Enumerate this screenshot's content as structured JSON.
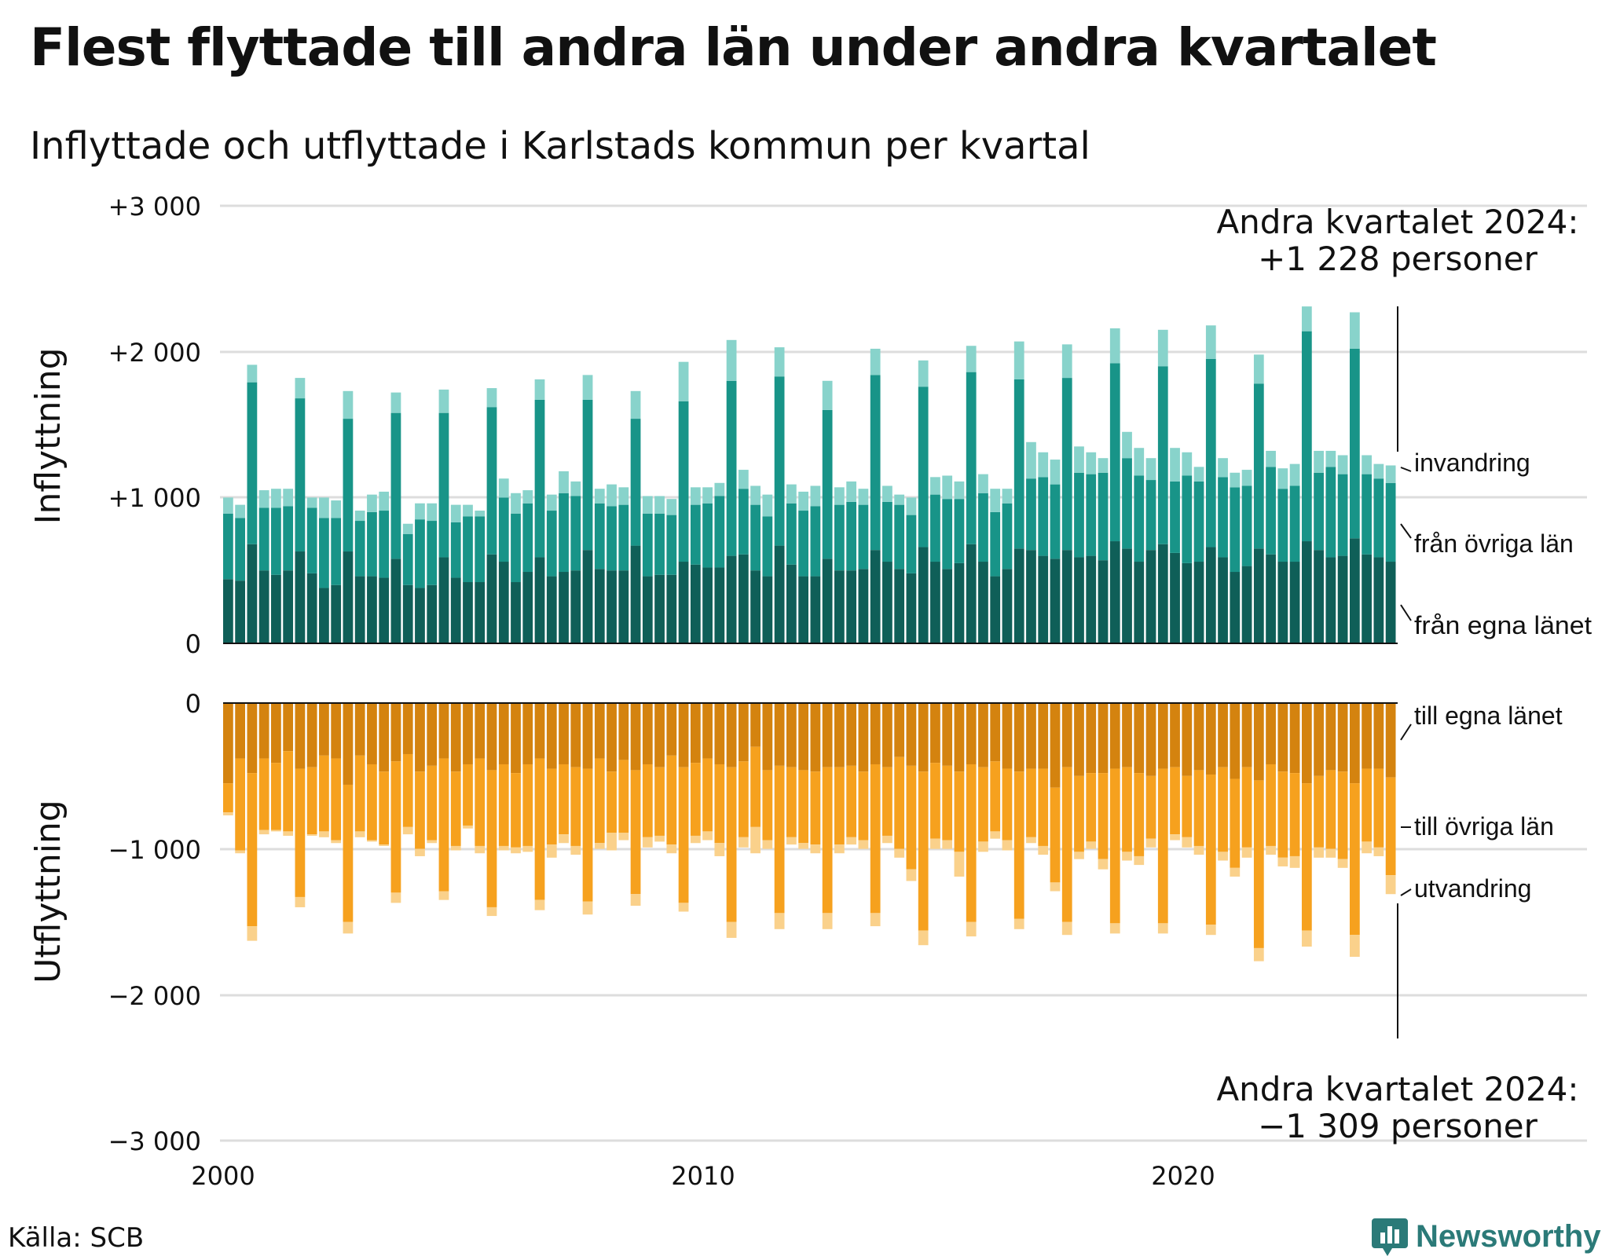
{
  "title": "Flest flyttade till andra län under andra kvartalet",
  "subtitle": "Inflyttade och utflyttade i Karlstads kommun per kvartal",
  "source": "Källa: SCB",
  "brand": "Newsworthy",
  "colors": {
    "in_own": "#0f5f58",
    "in_other": "#189488",
    "in_immig": "#88d3cb",
    "out_own": "#d4830f",
    "out_other": "#f6a11e",
    "out_emig": "#fad18b",
    "grid": "#dddddd",
    "brand": "#2b7a78"
  },
  "chart_data": {
    "type": "bar",
    "stacked": true,
    "diverging": true,
    "y_ticks": [
      "+3 000",
      "+2 000",
      "+1 000",
      "0",
      "0",
      "−1 000",
      "−2 000",
      "−3 000"
    ],
    "ylim_in": [
      0,
      3000
    ],
    "ylim_out": [
      -3000,
      0
    ],
    "x_ticks": [
      "2000",
      "2010",
      "2020"
    ],
    "ylabel_in": "Inflyttning",
    "ylabel_out": "Utflyttning",
    "grid": true,
    "annotation_top": {
      "line1": "Andra kvartalet 2024:",
      "line2": "+1 228 personer"
    },
    "annotation_bottom": {
      "line1": "Andra kvartalet 2024:",
      "line2": "−1 309 personer"
    },
    "series_labels": {
      "in_immig": "invandring",
      "in_other": "från övriga län",
      "in_own": "från egna länet",
      "out_own": "till egna länet",
      "out_other": "till övriga län",
      "out_emig": "utvandring"
    },
    "periods": [
      "2000 Q1",
      "2000 Q2",
      "2000 Q3",
      "2000 Q4",
      "2001 Q1",
      "2001 Q2",
      "2001 Q3",
      "2001 Q4",
      "2002 Q1",
      "2002 Q2",
      "2002 Q3",
      "2002 Q4",
      "2003 Q1",
      "2003 Q2",
      "2003 Q3",
      "2003 Q4",
      "2004 Q1",
      "2004 Q2",
      "2004 Q3",
      "2004 Q4",
      "2005 Q1",
      "2005 Q2",
      "2005 Q3",
      "2005 Q4",
      "2006 Q1",
      "2006 Q2",
      "2006 Q3",
      "2006 Q4",
      "2007 Q1",
      "2007 Q2",
      "2007 Q3",
      "2007 Q4",
      "2008 Q1",
      "2008 Q2",
      "2008 Q3",
      "2008 Q4",
      "2009 Q1",
      "2009 Q2",
      "2009 Q3",
      "2009 Q4",
      "2010 Q1",
      "2010 Q2",
      "2010 Q3",
      "2010 Q4",
      "2011 Q1",
      "2011 Q2",
      "2011 Q3",
      "2011 Q4",
      "2012 Q1",
      "2012 Q2",
      "2012 Q3",
      "2012 Q4",
      "2013 Q1",
      "2013 Q2",
      "2013 Q3",
      "2013 Q4",
      "2014 Q1",
      "2014 Q2",
      "2014 Q3",
      "2014 Q4",
      "2015 Q1",
      "2015 Q2",
      "2015 Q3",
      "2015 Q4",
      "2016 Q1",
      "2016 Q2",
      "2016 Q3",
      "2016 Q4",
      "2017 Q1",
      "2017 Q2",
      "2017 Q3",
      "2017 Q4",
      "2018 Q1",
      "2018 Q2",
      "2018 Q3",
      "2018 Q4",
      "2019 Q1",
      "2019 Q2",
      "2019 Q3",
      "2019 Q4",
      "2020 Q1",
      "2020 Q2",
      "2020 Q3",
      "2020 Q4",
      "2021 Q1",
      "2021 Q2",
      "2021 Q3",
      "2021 Q4",
      "2022 Q1",
      "2022 Q2",
      "2022 Q3",
      "2022 Q4",
      "2023 Q1",
      "2023 Q2",
      "2023 Q3",
      "2023 Q4",
      "2024 Q1",
      "2024 Q2"
    ],
    "series": [
      {
        "key": "in_own",
        "values": [
          440,
          430,
          680,
          500,
          470,
          500,
          630,
          480,
          380,
          400,
          630,
          460,
          460,
          450,
          580,
          400,
          380,
          400,
          590,
          450,
          420,
          420,
          610,
          560,
          420,
          490,
          590,
          460,
          490,
          500,
          640,
          510,
          500,
          500,
          670,
          460,
          470,
          470,
          560,
          540,
          520,
          520,
          600,
          610,
          500,
          460,
          670,
          540,
          460,
          460,
          580,
          500,
          500,
          510,
          640,
          560,
          510,
          480,
          660,
          560,
          510,
          550,
          680,
          560,
          460,
          510,
          650,
          640,
          600,
          580,
          640,
          590,
          600,
          570,
          700,
          650,
          560,
          640,
          680,
          620,
          550,
          560,
          660,
          590,
          490,
          530,
          650,
          610,
          560,
          560,
          700,
          640,
          590,
          600,
          720,
          610,
          590,
          560
        ]
      },
      {
        "key": "in_other",
        "values": [
          450,
          430,
          1110,
          430,
          460,
          440,
          1050,
          450,
          480,
          460,
          910,
          380,
          440,
          460,
          1000,
          350,
          470,
          440,
          990,
          380,
          450,
          450,
          1010,
          440,
          470,
          470,
          1080,
          450,
          540,
          510,
          1030,
          450,
          440,
          450,
          870,
          430,
          420,
          410,
          1100,
          410,
          440,
          490,
          1200,
          450,
          450,
          410,
          1160,
          420,
          450,
          480,
          1020,
          450,
          470,
          440,
          1200,
          410,
          440,
          400,
          1100,
          460,
          480,
          440,
          1180,
          470,
          440,
          450,
          1160,
          490,
          540,
          510,
          1180,
          580,
          560,
          600,
          1220,
          620,
          590,
          480,
          1220,
          490,
          600,
          550,
          1290,
          550,
          580,
          550,
          1130,
          600,
          500,
          520,
          1440,
          530,
          620,
          560,
          1300,
          550,
          540,
          540
        ]
      },
      {
        "key": "in_immig",
        "values": [
          110,
          90,
          120,
          120,
          130,
          120,
          140,
          70,
          140,
          120,
          190,
          70,
          120,
          130,
          140,
          70,
          110,
          120,
          160,
          120,
          80,
          40,
          130,
          130,
          140,
          90,
          140,
          110,
          150,
          100,
          170,
          100,
          150,
          120,
          190,
          120,
          120,
          110,
          270,
          120,
          110,
          90,
          280,
          130,
          130,
          150,
          200,
          130,
          130,
          140,
          200,
          120,
          140,
          110,
          180,
          110,
          70,
          120,
          180,
          120,
          160,
          120,
          180,
          130,
          160,
          100,
          260,
          250,
          170,
          170,
          230,
          180,
          150,
          100,
          240,
          180,
          190,
          150,
          250,
          230,
          160,
          100,
          230,
          130,
          100,
          110,
          200,
          110,
          140,
          150,
          170,
          150,
          110,
          130,
          250,
          130,
          100,
          120
        ]
      },
      {
        "key": "out_own",
        "values": [
          -550,
          -380,
          -480,
          -380,
          -410,
          -330,
          -450,
          -440,
          -360,
          -380,
          -560,
          -360,
          -420,
          -470,
          -400,
          -350,
          -470,
          -430,
          -380,
          -470,
          -420,
          -380,
          -460,
          -420,
          -480,
          -420,
          -380,
          -450,
          -420,
          -440,
          -450,
          -380,
          -470,
          -390,
          -460,
          -420,
          -440,
          -360,
          -440,
          -410,
          -380,
          -420,
          -440,
          -400,
          -300,
          -460,
          -430,
          -440,
          -460,
          -470,
          -440,
          -440,
          -430,
          -470,
          -420,
          -440,
          -370,
          -430,
          -470,
          -410,
          -430,
          -470,
          -420,
          -440,
          -400,
          -450,
          -470,
          -450,
          -450,
          -580,
          -440,
          -500,
          -480,
          -480,
          -450,
          -440,
          -480,
          -500,
          -450,
          -440,
          -500,
          -460,
          -490,
          -440,
          -520,
          -440,
          -530,
          -420,
          -470,
          -480,
          -550,
          -500,
          -460,
          -470,
          -550,
          -450,
          -450,
          -510
        ]
      },
      {
        "key": "out_other",
        "values": [
          -200,
          -630,
          -1050,
          -490,
          -460,
          -550,
          -880,
          -460,
          -520,
          -560,
          -940,
          -520,
          -520,
          -500,
          -900,
          -500,
          -530,
          -510,
          -910,
          -510,
          -420,
          -600,
          -940,
          -560,
          -510,
          -560,
          -970,
          -520,
          -480,
          -540,
          -910,
          -580,
          -420,
          -500,
          -850,
          -500,
          -470,
          -610,
          -930,
          -500,
          -500,
          -540,
          -1060,
          -520,
          -550,
          -480,
          -1010,
          -480,
          -500,
          -500,
          -1000,
          -530,
          -490,
          -470,
          -1020,
          -470,
          -630,
          -710,
          -1090,
          -520,
          -510,
          -550,
          -1080,
          -510,
          -480,
          -490,
          -1010,
          -470,
          -530,
          -650,
          -1060,
          -520,
          -470,
          -590,
          -1060,
          -580,
          -570,
          -430,
          -1060,
          -460,
          -420,
          -520,
          -1030,
          -580,
          -610,
          -550,
          -1150,
          -560,
          -590,
          -570,
          -1010,
          -490,
          -540,
          -600,
          -1040,
          -500,
          -540,
          -670
        ]
      },
      {
        "key": "out_emig",
        "values": [
          -20,
          -20,
          -100,
          -30,
          -10,
          -30,
          -70,
          -10,
          -40,
          -20,
          -80,
          -40,
          -10,
          -10,
          -70,
          -50,
          -50,
          -20,
          -60,
          -30,
          -20,
          -50,
          -60,
          -30,
          -40,
          -40,
          -70,
          -90,
          -60,
          -60,
          -90,
          -40,
          -120,
          -50,
          -80,
          -70,
          -40,
          -60,
          -60,
          -50,
          -60,
          -90,
          -110,
          -70,
          -180,
          -60,
          -110,
          -50,
          -40,
          -60,
          -110,
          -60,
          -50,
          -60,
          -90,
          -50,
          -60,
          -80,
          -100,
          -70,
          -60,
          -170,
          -100,
          -70,
          -50,
          -70,
          -70,
          -40,
          -60,
          -60,
          -90,
          -50,
          -50,
          -70,
          -70,
          -60,
          -60,
          -60,
          -70,
          -40,
          -70,
          -60,
          -70,
          -60,
          -60,
          -70,
          -90,
          -60,
          -60,
          -80,
          -110,
          -70,
          -60,
          -60,
          -150,
          -80,
          -60,
          -130
        ]
      }
    ]
  }
}
